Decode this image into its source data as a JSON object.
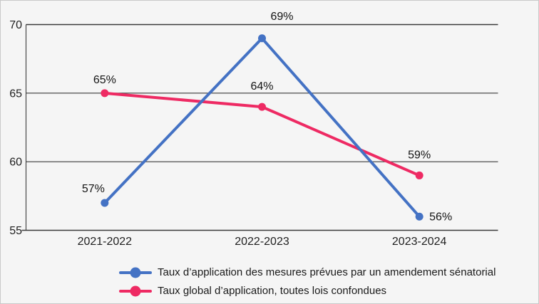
{
  "figure": {
    "background": "#f5f5f5",
    "border_color": "#c9c9c9",
    "axis_color": "#3a3a3a",
    "text_color": "#1a1a1a"
  },
  "chart_data": {
    "type": "line",
    "title": "",
    "xlabel": "",
    "ylabel": "",
    "categories": [
      "2021-2022",
      "2022-2023",
      "2023-2024"
    ],
    "series": [
      {
        "name": "Taux d’application des mesures prévues par un amendement sénatorial",
        "color": "#4472c4",
        "values": [
          57,
          69,
          56
        ],
        "labels": [
          "57%",
          "69%",
          "56%"
        ],
        "label_placements": [
          "above-left",
          "up-right",
          "right"
        ]
      },
      {
        "name": "Taux global d’application, toutes lois confondues",
        "color": "#ee2a63",
        "values": [
          65,
          64,
          59
        ],
        "labels": [
          "65%",
          "64%",
          "59%"
        ],
        "label_placements": [
          "above",
          "above-far",
          "above-far"
        ]
      }
    ],
    "ylim": [
      55,
      70
    ],
    "yticks": [
      55,
      60,
      65,
      70
    ],
    "grid": true,
    "legend_position": "bottom"
  }
}
